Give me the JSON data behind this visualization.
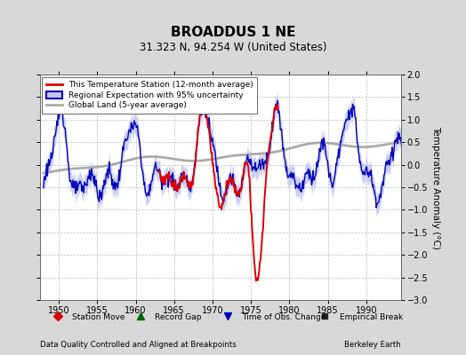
{
  "title": "BROADDUS 1 NE",
  "subtitle": "31.323 N, 94.254 W (United States)",
  "ylabel": "Temperature Anomaly (°C)",
  "xlabel_left": "Data Quality Controlled and Aligned at Breakpoints",
  "xlabel_right": "Berkeley Earth",
  "ylim": [
    -3,
    2
  ],
  "xlim": [
    1947.5,
    1994.5
  ],
  "yticks": [
    -3,
    -2.5,
    -2,
    -1.5,
    -1,
    -0.5,
    0,
    0.5,
    1,
    1.5,
    2
  ],
  "xticks": [
    1950,
    1955,
    1960,
    1965,
    1970,
    1975,
    1980,
    1985,
    1990
  ],
  "bg_color": "#d8d8d8",
  "plot_bg_color": "#ffffff",
  "grid_color": "#bbbbbb",
  "red_color": "#dd0000",
  "blue_color": "#0000bb",
  "blue_fill_color": "#c0c8f0",
  "gray_color": "#aaaaaa",
  "legend_labels": [
    "This Temperature Station (12-month average)",
    "Regional Expectation with 95% uncertainty",
    "Global Land (5-year average)"
  ],
  "red_start": 1963.0,
  "red_end": 1978.5
}
